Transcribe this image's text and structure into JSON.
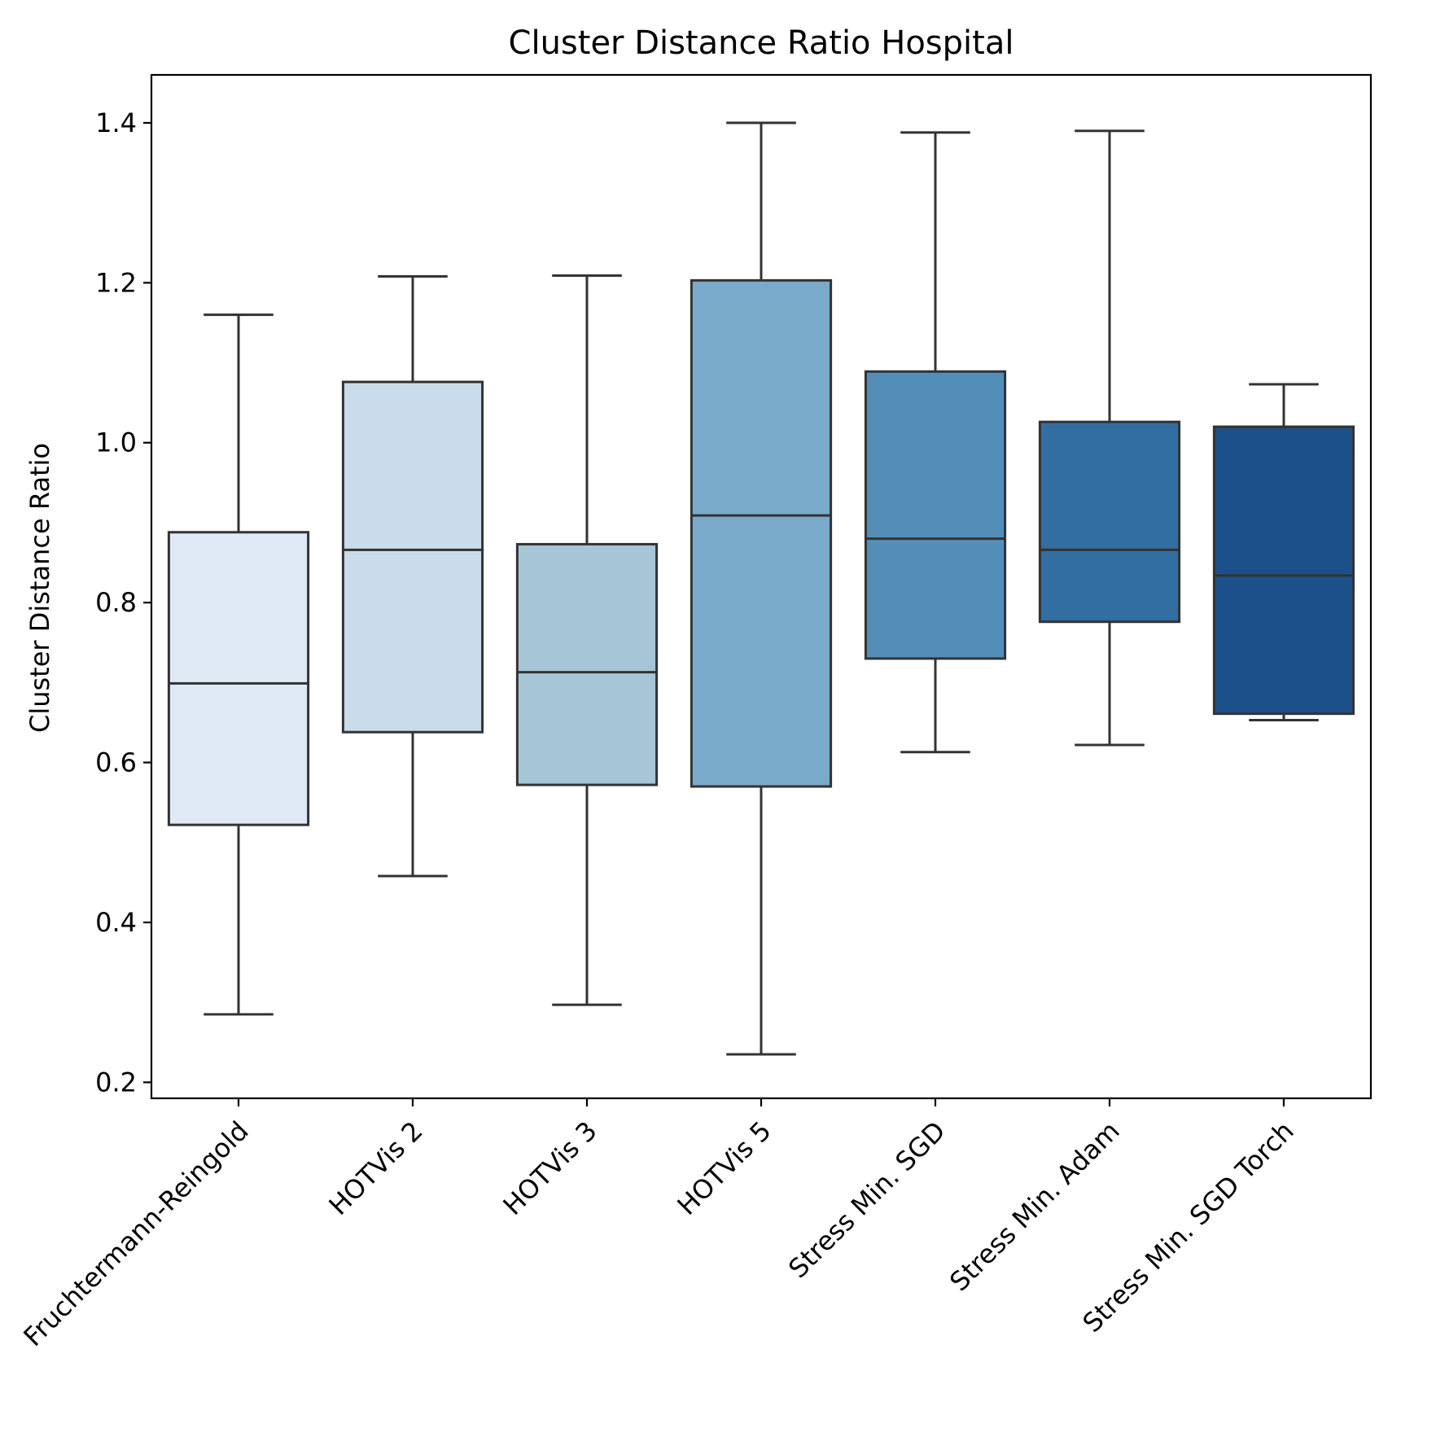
{
  "chart_data": {
    "type": "box",
    "title": "Cluster Distance Ratio Hospital",
    "xlabel": "",
    "ylabel": "Cluster Distance Ratio",
    "ylim": [
      0.18,
      1.46
    ],
    "yticks": [
      "0.2",
      "0.4",
      "0.6",
      "0.8",
      "1.0",
      "1.2",
      "1.4"
    ],
    "grid": false,
    "legend": "none",
    "categories": [
      "Fruchtermann-Reingold",
      "HOTVis 2",
      "HOTVis 3",
      "HOTVis 5",
      "Stress Min. SGD",
      "Stress Min. Adam",
      "Stress Min. SGD Torch"
    ],
    "boxes": [
      {
        "whisker_low": 0.285,
        "q1": 0.522,
        "median": 0.699,
        "q3": 0.888,
        "whisker_high": 1.16,
        "color": "#dfeaf6"
      },
      {
        "whisker_low": 0.458,
        "q1": 0.638,
        "median": 0.866,
        "q3": 1.076,
        "whisker_high": 1.208,
        "color": "#cadbeb"
      },
      {
        "whisker_low": 0.297,
        "q1": 0.572,
        "median": 0.713,
        "q3": 0.873,
        "whisker_high": 1.209,
        "color": "#a6c6d8"
      },
      {
        "whisker_low": 0.235,
        "q1": 0.57,
        "median": 0.909,
        "q3": 1.203,
        "whisker_high": 1.4,
        "color": "#7aaac9"
      },
      {
        "whisker_low": 0.613,
        "q1": 0.73,
        "median": 0.88,
        "q3": 1.089,
        "whisker_high": 1.388,
        "color": "#528eb8"
      },
      {
        "whisker_low": 0.622,
        "q1": 0.776,
        "median": 0.866,
        "q3": 1.026,
        "whisker_high": 1.39,
        "color": "#326ea2"
      },
      {
        "whisker_low": 0.653,
        "q1": 0.661,
        "median": 0.834,
        "q3": 1.02,
        "whisker_high": 1.073,
        "color": "#1c5088"
      }
    ]
  }
}
